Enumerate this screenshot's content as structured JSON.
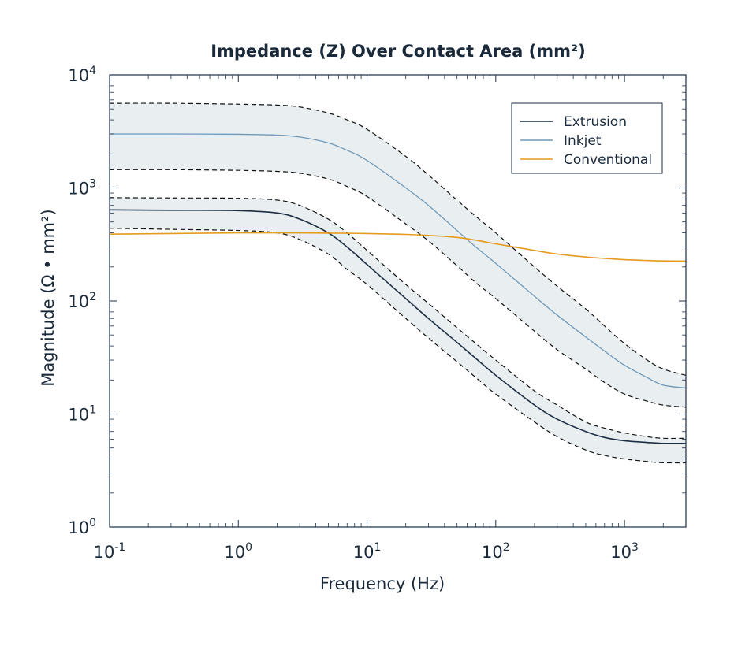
{
  "chart_data": {
    "type": "line",
    "title": "Impedance (Z) Over Contact Area (mm²)",
    "xlabel": "Frequency (Hz)",
    "ylabel": "Magnitude (Ω • mm²)",
    "xscale": "log",
    "yscale": "log",
    "xlim": [
      0.1,
      3000
    ],
    "ylim": [
      1,
      10000
    ],
    "x_ticks": [
      {
        "base": "10",
        "exp": "-1"
      },
      {
        "base": "10",
        "exp": "0"
      },
      {
        "base": "10",
        "exp": "1"
      },
      {
        "base": "10",
        "exp": "2"
      },
      {
        "base": "10",
        "exp": "3"
      }
    ],
    "y_ticks": [
      {
        "base": "10",
        "exp": "0"
      },
      {
        "base": "10",
        "exp": "1"
      },
      {
        "base": "10",
        "exp": "2"
      },
      {
        "base": "10",
        "exp": "3"
      },
      {
        "base": "10",
        "exp": "4"
      }
    ],
    "x": [
      0.1,
      0.3,
      1,
      2,
      3,
      5,
      7,
      10,
      20,
      30,
      50,
      70,
      100,
      200,
      300,
      500,
      700,
      1000,
      1500,
      2000,
      3000
    ],
    "series": [
      {
        "name": "Extrusion",
        "color": "#1c2e45",
        "values": [
          640,
          635,
          630,
          600,
          530,
          400,
          300,
          210,
          105,
          70,
          43,
          31,
          22,
          12,
          9,
          7,
          6.2,
          5.8,
          5.6,
          5.5,
          5.5
        ],
        "band_lower": [
          440,
          430,
          420,
          400,
          350,
          260,
          190,
          140,
          70,
          47,
          29,
          21,
          15,
          8.5,
          6.3,
          4.8,
          4.3,
          4,
          3.8,
          3.7,
          3.7
        ],
        "band_upper": [
          820,
          815,
          810,
          780,
          700,
          530,
          400,
          280,
          140,
          95,
          58,
          42,
          30,
          16,
          12,
          8.5,
          7.5,
          6.8,
          6.3,
          6.1,
          6.1
        ]
      },
      {
        "name": "Inkjet",
        "color": "#6f98b8",
        "values": [
          3000,
          3000,
          2980,
          2930,
          2820,
          2500,
          2150,
          1750,
          1000,
          700,
          420,
          300,
          215,
          110,
          75,
          48,
          36,
          27,
          21,
          18,
          17
        ],
        "band_lower": [
          1450,
          1450,
          1430,
          1400,
          1350,
          1200,
          1030,
          840,
          480,
          340,
          205,
          145,
          105,
          54,
          37,
          25,
          19,
          15,
          13,
          12,
          11.5
        ],
        "band_upper": [
          5600,
          5600,
          5500,
          5400,
          5200,
          4600,
          4000,
          3300,
          1900,
          1300,
          780,
          560,
          400,
          200,
          135,
          85,
          60,
          42,
          30,
          25,
          22
        ]
      },
      {
        "name": "Conventional",
        "color": "#e49b1e",
        "values": [
          390,
          395,
          400,
          400,
          400,
          398,
          397,
          395,
          388,
          380,
          365,
          345,
          320,
          280,
          260,
          245,
          238,
          232,
          228,
          226,
          225
        ]
      }
    ],
    "band_fill": "#e9eef0",
    "legend": {
      "position": "top-right",
      "entries": [
        "Extrusion",
        "Inkjet",
        "Conventional"
      ]
    },
    "grid": false
  }
}
